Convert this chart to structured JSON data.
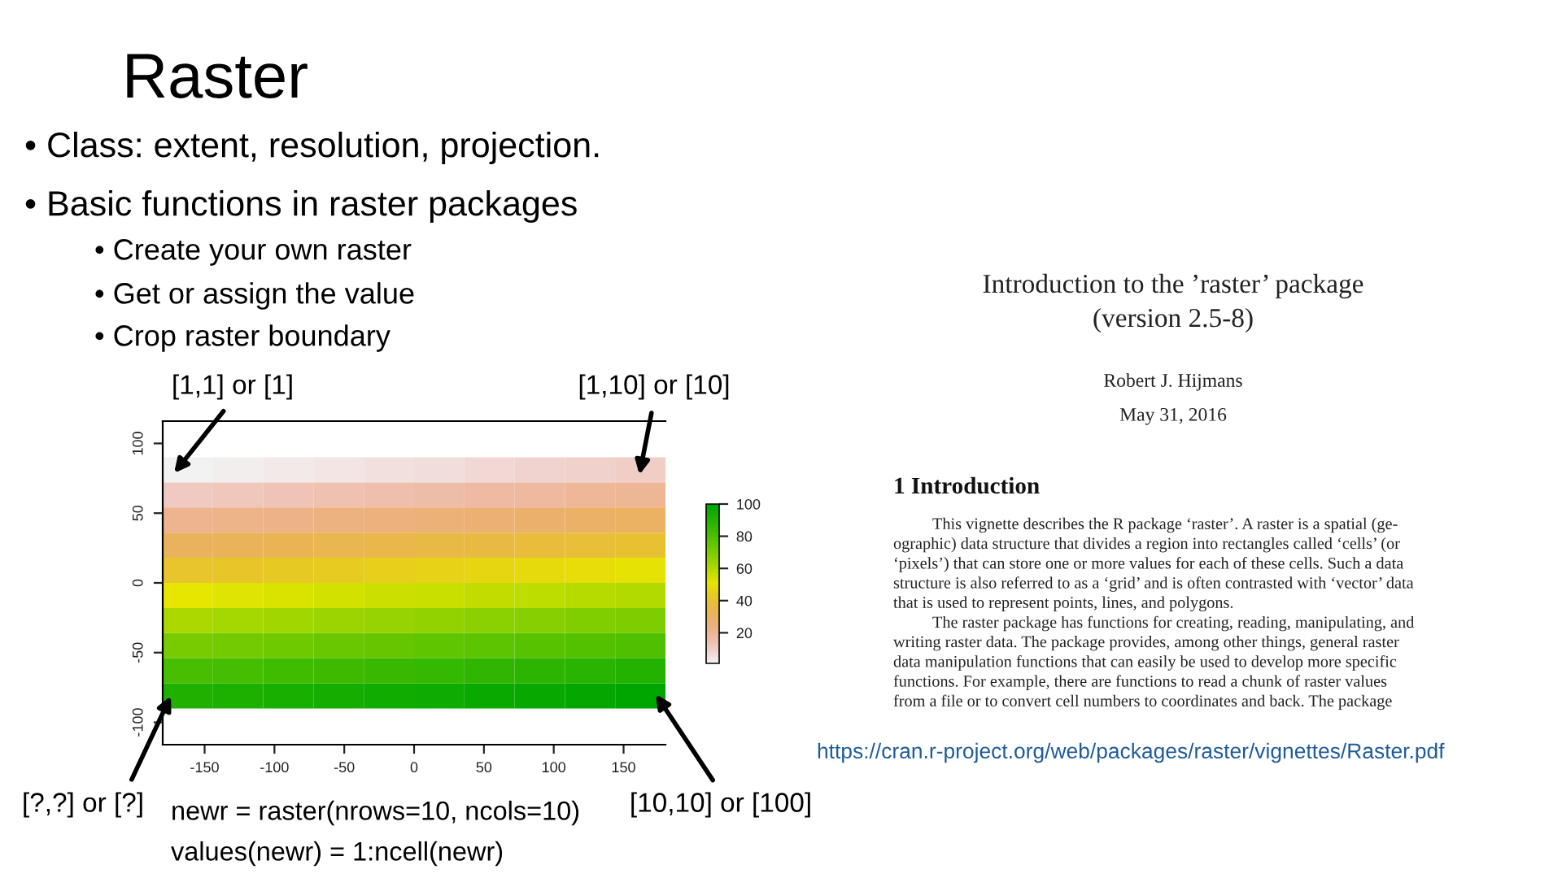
{
  "chart_data": {
    "type": "heatmap",
    "title": "Raster",
    "x": [
      -162,
      -126,
      -90,
      -54,
      -18,
      18,
      54,
      90,
      126,
      162
    ],
    "y": [
      81,
      63,
      45,
      27,
      9,
      -9,
      -27,
      -45,
      -63,
      -81
    ],
    "cells": [
      [
        1,
        2,
        3,
        4,
        5,
        6,
        7,
        8,
        9,
        10
      ],
      [
        11,
        12,
        13,
        14,
        15,
        16,
        17,
        18,
        19,
        20
      ],
      [
        21,
        22,
        23,
        24,
        25,
        26,
        27,
        28,
        29,
        30
      ],
      [
        31,
        32,
        33,
        34,
        35,
        36,
        37,
        38,
        39,
        40
      ],
      [
        41,
        42,
        43,
        44,
        45,
        46,
        47,
        48,
        49,
        50
      ],
      [
        51,
        52,
        53,
        54,
        55,
        56,
        57,
        58,
        59,
        60
      ],
      [
        61,
        62,
        63,
        64,
        65,
        66,
        67,
        68,
        69,
        70
      ],
      [
        71,
        72,
        73,
        74,
        75,
        76,
        77,
        78,
        79,
        80
      ],
      [
        81,
        82,
        83,
        84,
        85,
        86,
        87,
        88,
        89,
        90
      ],
      [
        91,
        92,
        93,
        94,
        95,
        96,
        97,
        98,
        99,
        100
      ]
    ],
    "xlim": [
      -180,
      180
    ],
    "ylim": [
      -116,
      116
    ],
    "xticks": [
      -150,
      -100,
      -50,
      0,
      50,
      100,
      150
    ],
    "yticks": [
      -100,
      -50,
      0,
      50,
      100
    ],
    "clim": [
      1,
      100
    ],
    "cticks": [
      20,
      40,
      60,
      80,
      100
    ],
    "annotations": [
      "• Class: extent, resolution, projection.",
      "• Basic functions in raster packages",
      "• Create your own raster",
      "• Get or assign the value",
      "• Crop raster boundary",
      "newr = raster(nrows=10, ncols=10)",
      "values(newr) = 1:ncell(newr)",
      "https://cran.r-project.org/web/packages/raster/vignettes/Raster.pdf",
      "Introduction to the ’raster’ package",
      "(version 2.5-8)",
      "Robert J. Hijmans",
      "May 31, 2016",
      "1 Introduction",
      "This vignette describes the R package ‘raster’. A raster is a spatial (ge-",
      "ographic) data structure that divides a region into rectangles called ‘cells’ (or",
      "‘pixels’) that can store one or more values for each of these cells. Such a data",
      "structure is also referred to as a ‘grid’ and is often contrasted with ‘vector’ data",
      "that is used to represent points, lines, and polygons.",
      "The raster package has functions for creating, reading, manipulating, and",
      "writing raster data. The package provides, among other things, general raster",
      "data manipulation functions that can easily be used to develop more specific",
      "functions. For example, there are functions to read a chunk of raster values",
      "from a file or to convert cell numbers to coordinates and back. The package",
      "[1,1] or [1]",
      "[1,10] or [10]",
      "[?,?] or [?]",
      "[10,10] or [100]"
    ]
  }
}
